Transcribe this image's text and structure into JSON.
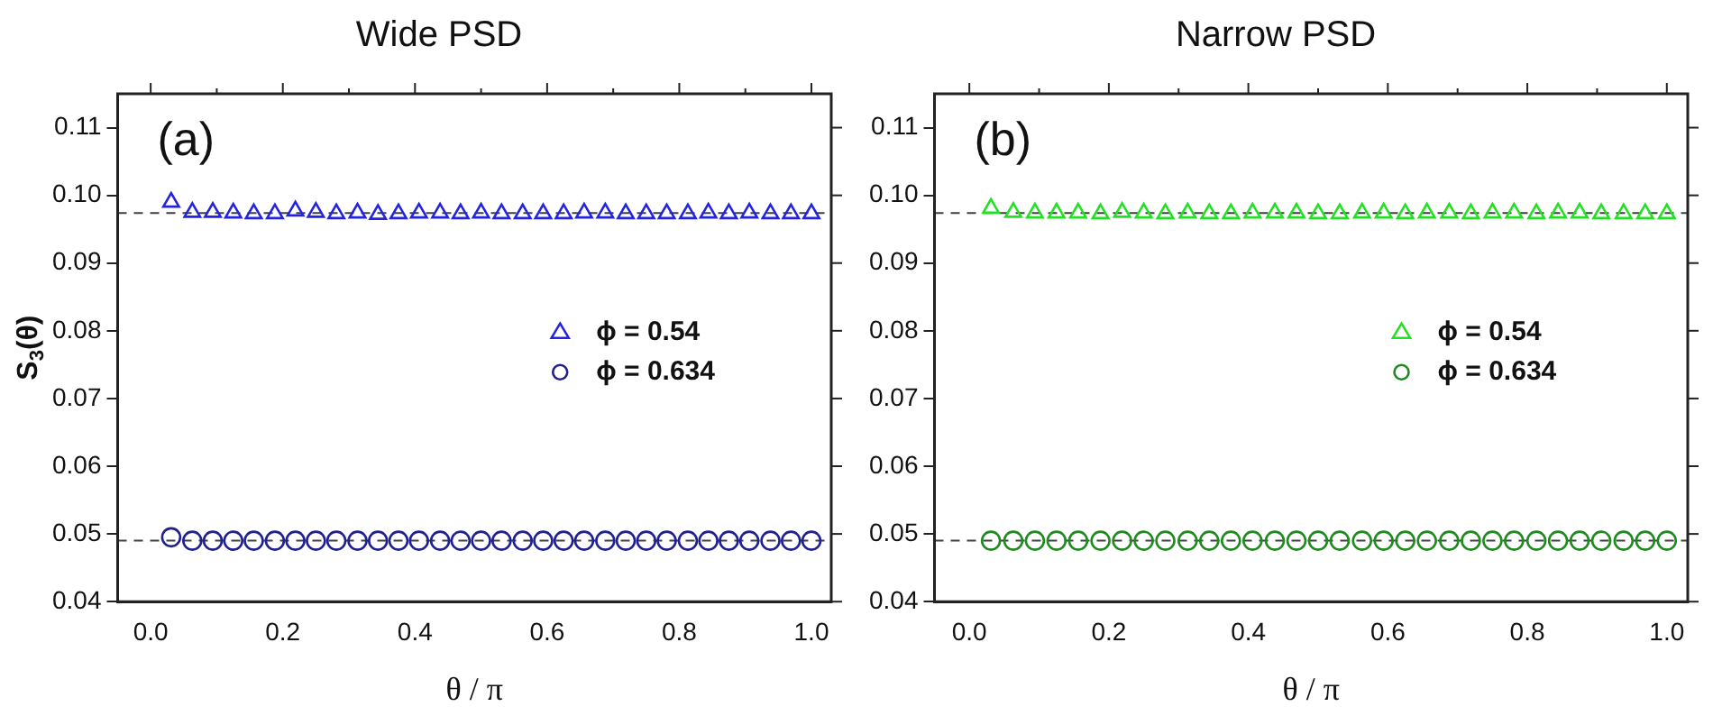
{
  "chart_data": [
    {
      "type": "scatter",
      "title": "Wide PSD",
      "xlabel": "θ / π",
      "ylabel": "S$_{3}$(θ)",
      "annotations": [
        "(a)"
      ],
      "legend": "right",
      "grid": false,
      "x": [
        0.031,
        0.063,
        0.094,
        0.125,
        0.156,
        0.188,
        0.219,
        0.25,
        0.281,
        0.313,
        0.344,
        0.375,
        0.406,
        0.438,
        0.469,
        0.5,
        0.531,
        0.563,
        0.594,
        0.625,
        0.656,
        0.688,
        0.719,
        0.75,
        0.781,
        0.813,
        0.844,
        0.875,
        0.906,
        0.938,
        0.969,
        1.0
      ],
      "series": [
        {
          "name": "ϕ = 0.54",
          "color": "#2424e0",
          "marker": "triangle",
          "values": [
            0.099,
            0.0975,
            0.0975,
            0.0974,
            0.0973,
            0.0973,
            0.0977,
            0.0975,
            0.0973,
            0.0974,
            0.0972,
            0.0973,
            0.0974,
            0.0974,
            0.0973,
            0.0974,
            0.0973,
            0.0973,
            0.0973,
            0.0973,
            0.0974,
            0.0974,
            0.0973,
            0.0973,
            0.0973,
            0.0973,
            0.0974,
            0.0973,
            0.0974,
            0.0973,
            0.0973,
            0.0973
          ]
        },
        {
          "name": "ϕ = 0.634",
          "color": "#202090",
          "marker": "circle",
          "values": [
            0.0495,
            0.049,
            0.049,
            0.049,
            0.049,
            0.049,
            0.049,
            0.049,
            0.049,
            0.049,
            0.049,
            0.049,
            0.049,
            0.049,
            0.049,
            0.049,
            0.049,
            0.049,
            0.049,
            0.049,
            0.049,
            0.049,
            0.049,
            0.049,
            0.049,
            0.049,
            0.049,
            0.049,
            0.049,
            0.049,
            0.049,
            0.049
          ]
        }
      ],
      "ref_lines": [
        {
          "axis": "y",
          "value": 0.0974,
          "color": "#404040",
          "line_style": "dashed"
        },
        {
          "axis": "y",
          "value": 0.049,
          "color": "#404040",
          "line_style": "dashed"
        }
      ],
      "xlim": [
        -0.05,
        1.03
      ],
      "xticks": [
        {
          "value": 0,
          "label": "0.0"
        },
        {
          "value": 0.1,
          "label": null
        },
        0.2,
        {
          "value": 0.3,
          "label": null
        },
        0.4,
        {
          "value": 0.5,
          "label": null
        },
        0.6,
        {
          "value": 0.7,
          "label": null
        },
        0.8,
        {
          "value": 0.9,
          "label": null
        },
        {
          "value": 1,
          "label": "1.0"
        }
      ],
      "ylim": [
        0.04,
        0.115
      ],
      "yticks": [
        0.04,
        0.05,
        0.06,
        0.07,
        0.08,
        0.09,
        {
          "value": 0.1,
          "label": "0.10"
        },
        0.11
      ]
    },
    {
      "type": "scatter",
      "title": "Narrow PSD",
      "xlabel": "θ / π",
      "annotations": [
        "(b)"
      ],
      "legend": "right",
      "grid": false,
      "x": [
        0.031,
        0.063,
        0.094,
        0.125,
        0.156,
        0.188,
        0.219,
        0.25,
        0.281,
        0.313,
        0.344,
        0.375,
        0.406,
        0.438,
        0.469,
        0.5,
        0.531,
        0.563,
        0.594,
        0.625,
        0.656,
        0.688,
        0.719,
        0.75,
        0.781,
        0.813,
        0.844,
        0.875,
        0.906,
        0.938,
        0.969,
        1.0
      ],
      "series": [
        {
          "name": "ϕ = 0.54",
          "color": "#22e022",
          "marker": "triangle",
          "values": [
            0.0981,
            0.0975,
            0.0974,
            0.0974,
            0.0974,
            0.0973,
            0.0975,
            0.0974,
            0.0973,
            0.0974,
            0.0973,
            0.0973,
            0.0974,
            0.0974,
            0.0974,
            0.0973,
            0.0973,
            0.0974,
            0.0974,
            0.0973,
            0.0974,
            0.0974,
            0.0973,
            0.0974,
            0.0974,
            0.0973,
            0.0974,
            0.0974,
            0.0973,
            0.0973,
            0.0973,
            0.0973
          ]
        },
        {
          "name": "ϕ = 0.634",
          "color": "#208a20",
          "marker": "circle",
          "values": [
            0.049,
            0.049,
            0.049,
            0.049,
            0.049,
            0.049,
            0.049,
            0.049,
            0.049,
            0.049,
            0.049,
            0.049,
            0.049,
            0.049,
            0.049,
            0.049,
            0.049,
            0.049,
            0.049,
            0.049,
            0.049,
            0.049,
            0.049,
            0.049,
            0.049,
            0.049,
            0.049,
            0.049,
            0.049,
            0.049,
            0.049,
            0.049
          ]
        }
      ],
      "ref_lines": [
        {
          "axis": "y",
          "value": 0.0974,
          "color": "#404040",
          "line_style": "dashed"
        },
        {
          "axis": "y",
          "value": 0.049,
          "color": "#404040",
          "line_style": "dashed"
        }
      ],
      "xlim": [
        -0.05,
        1.03
      ],
      "xticks": [
        {
          "value": 0,
          "label": "0.0"
        },
        {
          "value": 0.1,
          "label": null
        },
        0.2,
        {
          "value": 0.3,
          "label": null
        },
        0.4,
        {
          "value": 0.5,
          "label": null
        },
        0.6,
        {
          "value": 0.7,
          "label": null
        },
        0.8,
        {
          "value": 0.9,
          "label": null
        },
        {
          "value": 1,
          "label": "1.0"
        }
      ],
      "ylim": [
        0.04,
        0.115
      ],
      "yticks": [
        0.04,
        0.05,
        0.06,
        0.07,
        0.08,
        0.09,
        {
          "value": 0.1,
          "label": "0.10"
        },
        0.11
      ]
    }
  ]
}
